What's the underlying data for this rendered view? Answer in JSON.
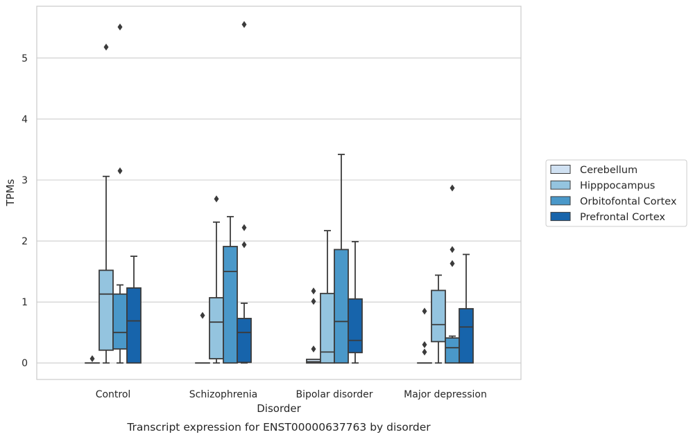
{
  "chart_data": {
    "type": "box",
    "xlabel": "Disorder",
    "ylabel": "TPMs",
    "caption": "Transcript expression for ENST00000637763 by disorder",
    "ylim": [
      -0.27,
      5.85
    ],
    "yticks": [
      0,
      1,
      2,
      3,
      4,
      5
    ],
    "yticklabels": [
      "0",
      "1",
      "2",
      "3",
      "4",
      "5"
    ],
    "grid": "horizontal",
    "legend_position": "right",
    "categories": [
      "Control",
      "Schizophrenia",
      "Bipolar disorder",
      "Major depression"
    ],
    "series": [
      {
        "name": "Cerebellum",
        "color": "#d0e1f2",
        "boxes": [
          {
            "q1": 0,
            "median": 0,
            "q3": 0,
            "whisker_low": 0,
            "whisker_high": 0,
            "outliers": [
              0.07
            ]
          },
          {
            "q1": 0,
            "median": 0,
            "q3": 0,
            "whisker_low": 0,
            "whisker_high": 0,
            "outliers": [
              0.78
            ]
          },
          {
            "q1": 0,
            "median": 0.02,
            "q3": 0.06,
            "whisker_low": 0,
            "whisker_high": 0.06,
            "outliers": [
              0.23,
              1.01,
              1.18
            ]
          },
          {
            "q1": 0,
            "median": 0,
            "q3": 0,
            "whisker_low": 0,
            "whisker_high": 0,
            "outliers": [
              0.18,
              0.3,
              0.85
            ]
          }
        ]
      },
      {
        "name": "Hipppocampus",
        "color": "#94c4df",
        "boxes": [
          {
            "q1": 0.21,
            "median": 1.13,
            "q3": 1.52,
            "whisker_low": 0,
            "whisker_high": 3.06,
            "outliers": [
              5.18
            ]
          },
          {
            "q1": 0.07,
            "median": 0.67,
            "q3": 1.07,
            "whisker_low": 0,
            "whisker_high": 2.31,
            "outliers": [
              2.69
            ]
          },
          {
            "q1": 0,
            "median": 0.18,
            "q3": 1.14,
            "whisker_low": 0,
            "whisker_high": 2.17,
            "outliers": []
          },
          {
            "q1": 0.35,
            "median": 0.63,
            "q3": 1.19,
            "whisker_low": 0,
            "whisker_high": 1.44,
            "outliers": []
          }
        ]
      },
      {
        "name": "Orbitofontal Cortex",
        "color": "#4a98c9",
        "boxes": [
          {
            "q1": 0.23,
            "median": 0.5,
            "q3": 1.13,
            "whisker_low": 0,
            "whisker_high": 1.28,
            "outliers": [
              3.15,
              5.51
            ]
          },
          {
            "q1": 0,
            "median": 1.5,
            "q3": 1.91,
            "whisker_low": 0,
            "whisker_high": 2.4,
            "outliers": []
          },
          {
            "q1": 0,
            "median": 0.68,
            "q3": 1.86,
            "whisker_low": 0,
            "whisker_high": 3.42,
            "outliers": []
          },
          {
            "q1": 0,
            "median": 0.25,
            "q3": 0.41,
            "whisker_low": 0,
            "whisker_high": 0.44,
            "outliers": [
              1.63,
              1.86,
              2.87
            ]
          }
        ]
      },
      {
        "name": "Prefrontal Cortex",
        "color": "#1764ab",
        "boxes": [
          {
            "q1": 0,
            "median": 0.69,
            "q3": 1.23,
            "whisker_low": 0,
            "whisker_high": 1.75,
            "outliers": []
          },
          {
            "q1": 0.01,
            "median": 0.5,
            "q3": 0.73,
            "whisker_low": 0,
            "whisker_high": 0.98,
            "outliers": [
              1.94,
              2.22,
              5.55
            ]
          },
          {
            "q1": 0.17,
            "median": 0.37,
            "q3": 1.05,
            "whisker_low": 0,
            "whisker_high": 1.99,
            "outliers": []
          },
          {
            "q1": 0,
            "median": 0.59,
            "q3": 0.89,
            "whisker_low": 0,
            "whisker_high": 1.78,
            "outliers": []
          }
        ]
      }
    ]
  }
}
